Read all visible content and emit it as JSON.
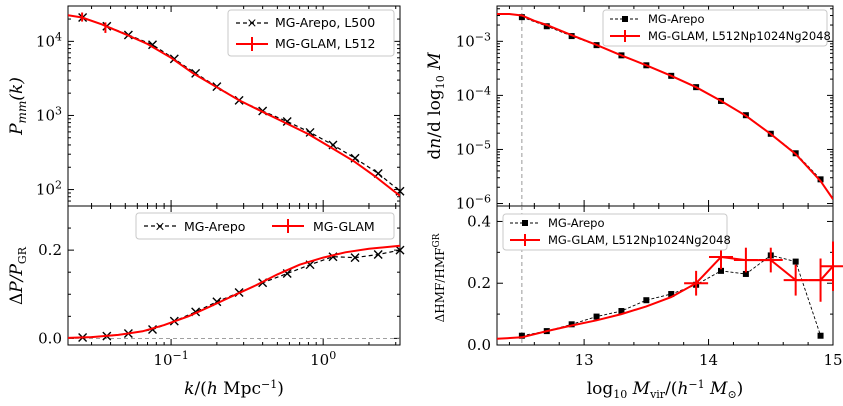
{
  "colors": {
    "glam": "#ff0000",
    "arepo": "#000000",
    "ref": "#808080"
  },
  "chart_data": [
    {
      "id": "pmm",
      "type": "line",
      "xscale": "log",
      "yscale": "log",
      "xlim": [
        0.021,
        3.2
      ],
      "ylim": [
        60,
        30000
      ],
      "xlabel": "k/(h Mpc⁻¹)",
      "ylabel": "P_mm(k)",
      "yticks": [
        {
          "v": 100,
          "base": "10",
          "exp": "2"
        },
        {
          "v": 1000,
          "base": "10",
          "exp": "3"
        },
        {
          "v": 10000,
          "base": "10",
          "exp": "4"
        }
      ],
      "legend": [
        {
          "label": "MG-Arepo, L500",
          "series": "arepo"
        },
        {
          "label": "MG-GLAM, L512",
          "series": "glam"
        }
      ],
      "legend_position": "top-right",
      "series": [
        {
          "name": "MG-Arepo, L500",
          "key": "arepo",
          "style": "dashed-x",
          "x": [
            0.0262,
            0.0378,
            0.0524,
            0.0755,
            0.105,
            0.145,
            0.2,
            0.28,
            0.4,
            0.58,
            0.82,
            1.16,
            1.62,
            2.3,
            3.2
          ],
          "y": [
            21000,
            16000,
            12200,
            9000,
            5800,
            3700,
            2450,
            1600,
            1150,
            830,
            590,
            400,
            265,
            165,
            95
          ]
        },
        {
          "name": "MG-GLAM, L512",
          "key": "glam",
          "style": "solid",
          "x": [
            0.021,
            0.026,
            0.035,
            0.05,
            0.07,
            0.1,
            0.14,
            0.2,
            0.28,
            0.4,
            0.56,
            0.8,
            1.1,
            1.6,
            2.2,
            3.2
          ],
          "y": [
            22500,
            21000,
            17000,
            12500,
            9200,
            6000,
            3700,
            2400,
            1600,
            1120,
            800,
            560,
            380,
            240,
            150,
            82
          ],
          "err_x": [
            0.026,
            0.037
          ],
          "err_y": [
            21500,
            15500
          ],
          "err_size": [
            3000,
            2500
          ]
        }
      ]
    },
    {
      "id": "dp",
      "type": "line",
      "xscale": "log",
      "yscale": "linear",
      "xlim": [
        0.021,
        3.2
      ],
      "ylim": [
        -0.015,
        0.3
      ],
      "xlabel": "k/(h Mpc⁻¹)",
      "ylabel": "ΔP/P_GR",
      "yticks": [
        {
          "v": 0.0,
          "label": "0.0"
        },
        {
          "v": 0.2,
          "label": "0.2"
        }
      ],
      "xticks": [
        {
          "v": 0.1,
          "base": "10",
          "exp": "−1"
        },
        {
          "v": 1.0,
          "base": "10",
          "exp": "0"
        }
      ],
      "legend": [
        {
          "label": "MG-Arepo",
          "series": "arepo"
        },
        {
          "label": "MG-GLAM",
          "series": "glam"
        }
      ],
      "legend_position": "top",
      "reference_line": 0,
      "series": [
        {
          "name": "MG-Arepo",
          "key": "arepo",
          "style": "dashed-x",
          "x": [
            0.0262,
            0.0378,
            0.0524,
            0.0755,
            0.105,
            0.145,
            0.2,
            0.28,
            0.4,
            0.58,
            0.82,
            1.16,
            1.62,
            2.3,
            3.2
          ],
          "y": [
            0.002,
            0.005,
            0.011,
            0.02,
            0.039,
            0.06,
            0.083,
            0.104,
            0.126,
            0.147,
            0.167,
            0.185,
            0.183,
            0.19,
            0.2
          ]
        },
        {
          "name": "MG-GLAM",
          "key": "glam",
          "style": "solid",
          "x": [
            0.021,
            0.03,
            0.045,
            0.065,
            0.09,
            0.13,
            0.18,
            0.25,
            0.36,
            0.5,
            0.7,
            1.0,
            1.4,
            2.0,
            3.2
          ],
          "y": [
            0.001,
            0.003,
            0.008,
            0.016,
            0.03,
            0.05,
            0.072,
            0.095,
            0.12,
            0.145,
            0.167,
            0.183,
            0.195,
            0.203,
            0.21
          ]
        }
      ]
    },
    {
      "id": "hmf",
      "type": "line",
      "xscale": "linear",
      "yscale": "log",
      "xlim": [
        12.3,
        15.0
      ],
      "ylim": [
        9e-07,
        0.0045
      ],
      "xlabel": "log10 M_vir/(h⁻¹ M_⊙)",
      "ylabel": "dn/d log10 M",
      "yticks": [
        {
          "v": 1e-06,
          "base": "10",
          "exp": "−6"
        },
        {
          "v": 1e-05,
          "base": "10",
          "exp": "−5"
        },
        {
          "v": 0.0001,
          "base": "10",
          "exp": "−4"
        },
        {
          "v": 0.001,
          "base": "10",
          "exp": "−3"
        }
      ],
      "legend": [
        {
          "label": "MG-Arepo",
          "series": "arepo"
        },
        {
          "label": "MG-GLAM, L512Np1024Ng2048",
          "series": "glam"
        }
      ],
      "legend_position": "top-right",
      "vline": 12.5,
      "series": [
        {
          "name": "MG-Arepo",
          "key": "arepo",
          "style": "dashed-square",
          "x": [
            12.5,
            12.7,
            12.9,
            13.1,
            13.3,
            13.5,
            13.7,
            13.9,
            14.1,
            14.3,
            14.5,
            14.7,
            14.9
          ],
          "y": [
            0.0028,
            0.0019,
            0.00125,
            0.00085,
            0.00055,
            0.00036,
            0.00023,
            0.000142,
            7.9e-05,
            4.3e-05,
            1.95e-05,
            8.5e-06,
            2.8e-06
          ]
        },
        {
          "name": "MG-GLAM, L512Np1024Ng2048",
          "key": "glam",
          "style": "solid",
          "x": [
            12.3,
            12.4,
            12.5,
            12.6,
            12.7,
            12.9,
            13.1,
            13.3,
            13.5,
            13.7,
            13.9,
            14.1,
            14.3,
            14.5,
            14.7,
            14.9,
            15.0
          ],
          "y": [
            0.0032,
            0.0032,
            0.003,
            0.0024,
            0.002,
            0.0013,
            0.00086,
            0.00055,
            0.00036,
            0.00023,
            0.000142,
            7.9e-05,
            4.2e-05,
            1.92e-05,
            8.2e-06,
            2.6e-06,
            1.2e-06
          ]
        }
      ]
    },
    {
      "id": "dhmf",
      "type": "line",
      "xscale": "linear",
      "yscale": "linear",
      "xlim": [
        12.3,
        15.0
      ],
      "ylim": [
        0.0,
        0.45
      ],
      "xlabel": "log10 M_vir/(h⁻¹ M_⊙)",
      "ylabel": "ΔHMF/HMF^GR",
      "xticks": [
        {
          "v": 13,
          "label": "13"
        },
        {
          "v": 14,
          "label": "14"
        },
        {
          "v": 15,
          "label": "15"
        }
      ],
      "yticks": [
        {
          "v": 0.0,
          "label": "0.0"
        },
        {
          "v": 0.2,
          "label": "0.2"
        },
        {
          "v": 0.4,
          "label": "0.4"
        }
      ],
      "legend": [
        {
          "label": "MG-Arepo",
          "series": "arepo"
        },
        {
          "label": "MG-GLAM, L512Np1024Ng2048",
          "series": "glam"
        }
      ],
      "legend_position": "top-left",
      "vline": 12.5,
      "series": [
        {
          "name": "MG-Arepo",
          "key": "arepo",
          "style": "dashed-square",
          "x": [
            12.5,
            12.7,
            12.9,
            13.1,
            13.3,
            13.5,
            13.7,
            13.9,
            14.1,
            14.3,
            14.5,
            14.7,
            14.9
          ],
          "y": [
            0.03,
            0.045,
            0.067,
            0.092,
            0.11,
            0.145,
            0.165,
            0.195,
            0.24,
            0.23,
            0.29,
            0.27,
            0.03
          ]
        },
        {
          "name": "MG-GLAM, L512Np1024Ng2048",
          "key": "glam",
          "style": "solid",
          "x": [
            12.3,
            12.5,
            12.7,
            12.9,
            13.1,
            13.3,
            13.5,
            13.7,
            13.9,
            14.1,
            14.3,
            14.5,
            14.7,
            14.9,
            15.0
          ],
          "y": [
            0.02,
            0.025,
            0.045,
            0.063,
            0.08,
            0.1,
            0.125,
            0.155,
            0.2,
            0.285,
            0.275,
            0.275,
            0.21,
            0.21,
            0.255
          ],
          "err_x": [
            13.9,
            14.1,
            14.3,
            14.5,
            14.7,
            14.9,
            15.0
          ],
          "err_y": [
            0.2,
            0.285,
            0.275,
            0.275,
            0.21,
            0.21,
            0.255
          ],
          "err_size": [
            0.04,
            0.04,
            0.04,
            0.04,
            0.05,
            0.07,
            0.08
          ]
        }
      ]
    }
  ]
}
